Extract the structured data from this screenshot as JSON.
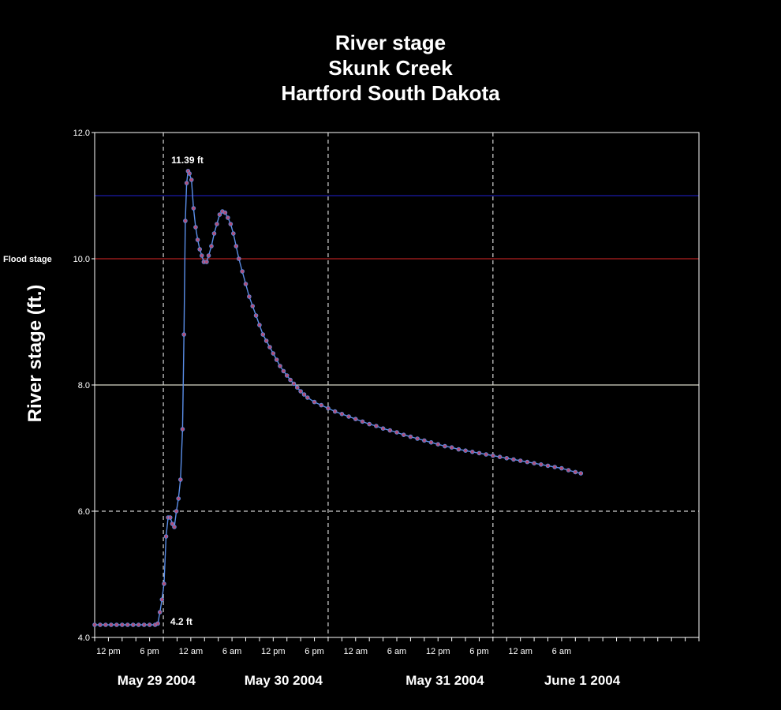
{
  "chart_data": {
    "type": "line",
    "title_lines": [
      "River stage",
      "Skunk Creek",
      "Hartford South Dakota"
    ],
    "ylabel": "River stage (ft.)",
    "xlabel": "",
    "ylim": [
      4.0,
      12.0
    ],
    "yticks": [
      "4.0",
      "6.0",
      "8.0",
      "10.0",
      "12.0"
    ],
    "xlim_hours": [
      0,
      88
    ],
    "x_tick_labels": [
      {
        "h": 2,
        "label": "12 pm"
      },
      {
        "h": 8,
        "label": "6 pm"
      },
      {
        "h": 14,
        "label": "12 am"
      },
      {
        "h": 20,
        "label": "6 am"
      },
      {
        "h": 26,
        "label": "12 pm"
      },
      {
        "h": 32,
        "label": "6 pm"
      },
      {
        "h": 38,
        "label": "12 am"
      },
      {
        "h": 44,
        "label": "6 am"
      },
      {
        "h": 50,
        "label": "12 pm"
      },
      {
        "h": 56,
        "label": "6 pm"
      },
      {
        "h": 62,
        "label": "12 am"
      },
      {
        "h": 68,
        "label": "6 am"
      }
    ],
    "date_labels": [
      {
        "h": 9,
        "label": "May 29 2004"
      },
      {
        "h": 27.5,
        "label": "May 30 2004"
      },
      {
        "h": 51,
        "label": "May 31 2004"
      },
      {
        "h": 71,
        "label": "June 1 2004"
      }
    ],
    "vertical_dashed_grid_hours": [
      10,
      34,
      58
    ],
    "horizontal_dashed_grid_values": [
      6.0,
      12.0
    ],
    "reference_lines": [
      {
        "value": 11.0,
        "color": "#1a1aa8"
      },
      {
        "value": 10.0,
        "color": "#b02020",
        "label": "Flood stage"
      },
      {
        "value": 8.0,
        "color": "#d8d8c8"
      }
    ],
    "annotations": [
      {
        "text": "11.39 ft",
        "x": 13.5,
        "y": 11.39
      },
      {
        "text": "4.2 ft",
        "x": 10.1,
        "y": 4.2
      }
    ],
    "series": [
      {
        "line_color": "#5a8ee8",
        "marker_color": "#b0507a",
        "points": [
          [
            0.0,
            4.2
          ],
          [
            0.8,
            4.2
          ],
          [
            1.6,
            4.2
          ],
          [
            2.4,
            4.2
          ],
          [
            3.2,
            4.2
          ],
          [
            4.0,
            4.2
          ],
          [
            4.8,
            4.2
          ],
          [
            5.6,
            4.2
          ],
          [
            6.4,
            4.2
          ],
          [
            7.2,
            4.2
          ],
          [
            8.0,
            4.2
          ],
          [
            8.8,
            4.2
          ],
          [
            9.2,
            4.22
          ],
          [
            9.5,
            4.4
          ],
          [
            9.8,
            4.6
          ],
          [
            10.1,
            4.85
          ],
          [
            10.4,
            5.6
          ],
          [
            10.7,
            5.9
          ],
          [
            11.0,
            5.9
          ],
          [
            11.3,
            5.8
          ],
          [
            11.6,
            5.75
          ],
          [
            11.9,
            6.0
          ],
          [
            12.2,
            6.2
          ],
          [
            12.5,
            6.5
          ],
          [
            12.8,
            7.3
          ],
          [
            13.0,
            8.8
          ],
          [
            13.2,
            10.6
          ],
          [
            13.4,
            11.2
          ],
          [
            13.6,
            11.39
          ],
          [
            13.8,
            11.35
          ],
          [
            14.1,
            11.25
          ],
          [
            14.4,
            10.8
          ],
          [
            14.7,
            10.5
          ],
          [
            15.0,
            10.3
          ],
          [
            15.3,
            10.15
          ],
          [
            15.6,
            10.05
          ],
          [
            15.9,
            9.95
          ],
          [
            16.3,
            9.95
          ],
          [
            16.6,
            10.05
          ],
          [
            17.0,
            10.2
          ],
          [
            17.4,
            10.4
          ],
          [
            17.8,
            10.55
          ],
          [
            18.2,
            10.7
          ],
          [
            18.6,
            10.75
          ],
          [
            19.0,
            10.73
          ],
          [
            19.4,
            10.65
          ],
          [
            19.8,
            10.55
          ],
          [
            20.2,
            10.4
          ],
          [
            20.6,
            10.2
          ],
          [
            21.0,
            10.0
          ],
          [
            21.5,
            9.8
          ],
          [
            22.0,
            9.6
          ],
          [
            22.5,
            9.4
          ],
          [
            23.0,
            9.25
          ],
          [
            23.5,
            9.1
          ],
          [
            24.0,
            8.95
          ],
          [
            24.5,
            8.8
          ],
          [
            25.0,
            8.7
          ],
          [
            25.5,
            8.6
          ],
          [
            26.0,
            8.5
          ],
          [
            26.5,
            8.4
          ],
          [
            27.0,
            8.3
          ],
          [
            27.5,
            8.22
          ],
          [
            28.0,
            8.15
          ],
          [
            28.5,
            8.08
          ],
          [
            29.0,
            8.02
          ],
          [
            29.5,
            7.96
          ],
          [
            30.0,
            7.9
          ],
          [
            30.5,
            7.85
          ],
          [
            31.0,
            7.8
          ],
          [
            32.0,
            7.73
          ],
          [
            33.0,
            7.68
          ],
          [
            34.0,
            7.63
          ],
          [
            35.0,
            7.58
          ],
          [
            36.0,
            7.54
          ],
          [
            37.0,
            7.5
          ],
          [
            38.0,
            7.46
          ],
          [
            39.0,
            7.42
          ],
          [
            40.0,
            7.38
          ],
          [
            41.0,
            7.35
          ],
          [
            42.0,
            7.31
          ],
          [
            43.0,
            7.28
          ],
          [
            44.0,
            7.25
          ],
          [
            45.0,
            7.21
          ],
          [
            46.0,
            7.18
          ],
          [
            47.0,
            7.15
          ],
          [
            48.0,
            7.12
          ],
          [
            49.0,
            7.09
          ],
          [
            50.0,
            7.06
          ],
          [
            51.0,
            7.03
          ],
          [
            52.0,
            7.01
          ],
          [
            53.0,
            6.98
          ],
          [
            54.0,
            6.96
          ],
          [
            55.0,
            6.94
          ],
          [
            56.0,
            6.92
          ],
          [
            57.0,
            6.9
          ],
          [
            58.0,
            6.88
          ],
          [
            59.0,
            6.86
          ],
          [
            60.0,
            6.84
          ],
          [
            61.0,
            6.82
          ],
          [
            62.0,
            6.8
          ],
          [
            63.0,
            6.78
          ],
          [
            64.0,
            6.76
          ],
          [
            65.0,
            6.74
          ],
          [
            66.0,
            6.72
          ],
          [
            67.0,
            6.7
          ],
          [
            68.0,
            6.68
          ],
          [
            69.0,
            6.65
          ],
          [
            70.0,
            6.62
          ],
          [
            70.8,
            6.6
          ]
        ]
      }
    ]
  }
}
